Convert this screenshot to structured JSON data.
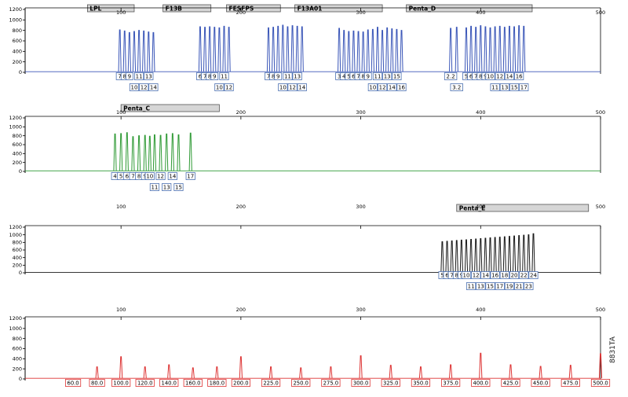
{
  "figure_code": "8831TA",
  "chart_data": {
    "type": "line",
    "description_kind": "electropherogram",
    "x_axis": {
      "range": [
        20,
        500
      ],
      "ticks": [
        100,
        200,
        300,
        400,
        500
      ]
    },
    "y_axis": {
      "range": [
        0,
        1200
      ],
      "ticks": [
        0,
        200,
        400,
        600,
        800,
        1000,
        1200
      ]
    },
    "panels": [
      {
        "id": "blue",
        "color": "#3a56b8",
        "loci": [
          {
            "name": "LPL",
            "start": 72,
            "end": 111
          },
          {
            "name": "F13B",
            "start": 135,
            "end": 175
          },
          {
            "name": "FESFPS",
            "start": 188,
            "end": 233
          },
          {
            "name": "F13A01",
            "start": 245,
            "end": 318
          },
          {
            "name": "Penta_D",
            "start": 338,
            "end": 443
          }
        ],
        "alleles": [
          {
            "label": "7",
            "x": 99,
            "h": 810,
            "row": 1
          },
          {
            "label": "8",
            "x": 103,
            "h": 790,
            "row": 1
          },
          {
            "label": "9",
            "x": 107,
            "h": 760,
            "row": 1
          },
          {
            "label": "10",
            "x": 111,
            "h": 780,
            "row": 2
          },
          {
            "label": "11",
            "x": 115,
            "h": 800,
            "row": 1
          },
          {
            "label": "12",
            "x": 119,
            "h": 790,
            "row": 2
          },
          {
            "label": "13",
            "x": 123,
            "h": 770,
            "row": 1
          },
          {
            "label": "14",
            "x": 127,
            "h": 760,
            "row": 2
          },
          {
            "label": "6",
            "x": 166,
            "h": 870,
            "row": 1
          },
          {
            "label": "7",
            "x": 170,
            "h": 860,
            "row": 1
          },
          {
            "label": "8",
            "x": 174,
            "h": 870,
            "row": 1
          },
          {
            "label": "9",
            "x": 178,
            "h": 860,
            "row": 1
          },
          {
            "label": "10",
            "x": 182,
            "h": 850,
            "row": 2
          },
          {
            "label": "11",
            "x": 186,
            "h": 880,
            "row": 1
          },
          {
            "label": "12",
            "x": 190,
            "h": 860,
            "row": 2
          },
          {
            "label": "7",
            "x": 223,
            "h": 850,
            "row": 1
          },
          {
            "label": "8",
            "x": 227,
            "h": 860,
            "row": 1
          },
          {
            "label": "9",
            "x": 231,
            "h": 880,
            "row": 1
          },
          {
            "label": "10",
            "x": 235,
            "h": 900,
            "row": 2
          },
          {
            "label": "11",
            "x": 239,
            "h": 870,
            "row": 1
          },
          {
            "label": "12",
            "x": 243,
            "h": 890,
            "row": 2
          },
          {
            "label": "13",
            "x": 247,
            "h": 880,
            "row": 1
          },
          {
            "label": "14",
            "x": 251,
            "h": 870,
            "row": 2
          },
          {
            "label": "3",
            "x": 282,
            "h": 840,
            "row": 1
          },
          {
            "label": "4",
            "x": 286,
            "h": 800,
            "row": 1
          },
          {
            "label": "5",
            "x": 290,
            "h": 780,
            "row": 1
          },
          {
            "label": "6",
            "x": 294,
            "h": 790,
            "row": 1
          },
          {
            "label": "7",
            "x": 298,
            "h": 780,
            "row": 1
          },
          {
            "label": "8",
            "x": 302,
            "h": 770,
            "row": 1
          },
          {
            "label": "9",
            "x": 306,
            "h": 810,
            "row": 1
          },
          {
            "label": "10",
            "x": 310,
            "h": 820,
            "row": 2
          },
          {
            "label": "11",
            "x": 314,
            "h": 860,
            "row": 1
          },
          {
            "label": "12",
            "x": 318,
            "h": 800,
            "row": 2
          },
          {
            "label": "13",
            "x": 322,
            "h": 850,
            "row": 1
          },
          {
            "label": "14",
            "x": 326,
            "h": 830,
            "row": 2
          },
          {
            "label": "15",
            "x": 330,
            "h": 820,
            "row": 1
          },
          {
            "label": "16",
            "x": 334,
            "h": 800,
            "row": 2
          },
          {
            "label": "2.2",
            "x": 375,
            "h": 840,
            "row": 1
          },
          {
            "label": "3.2",
            "x": 380,
            "h": 860,
            "row": 2
          },
          {
            "label": "5",
            "x": 388,
            "h": 850,
            "row": 1
          },
          {
            "label": "6",
            "x": 392,
            "h": 880,
            "row": 1
          },
          {
            "label": "7",
            "x": 396,
            "h": 860,
            "row": 1
          },
          {
            "label": "8",
            "x": 400,
            "h": 890,
            "row": 1
          },
          {
            "label": "9",
            "x": 404,
            "h": 870,
            "row": 1
          },
          {
            "label": "10",
            "x": 408,
            "h": 850,
            "row": 1
          },
          {
            "label": "11",
            "x": 412,
            "h": 870,
            "row": 2
          },
          {
            "label": "12",
            "x": 416,
            "h": 880,
            "row": 1
          },
          {
            "label": "13",
            "x": 420,
            "h": 860,
            "row": 2
          },
          {
            "label": "14",
            "x": 424,
            "h": 880,
            "row": 1
          },
          {
            "label": "15",
            "x": 428,
            "h": 870,
            "row": 2
          },
          {
            "label": "16",
            "x": 432,
            "h": 890,
            "row": 1
          },
          {
            "label": "17",
            "x": 436,
            "h": 880,
            "row": 2
          }
        ]
      },
      {
        "id": "green",
        "color": "#2f9a35",
        "loci": [
          {
            "name": "Penta_C",
            "start": 100,
            "end": 182
          }
        ],
        "alleles": [
          {
            "label": "4",
            "x": 95,
            "h": 840,
            "row": 1
          },
          {
            "label": "5",
            "x": 100,
            "h": 850,
            "row": 1
          },
          {
            "label": "6",
            "x": 105,
            "h": 870,
            "row": 1
          },
          {
            "label": "7",
            "x": 110,
            "h": 780,
            "row": 1
          },
          {
            "label": "8",
            "x": 115,
            "h": 800,
            "row": 1
          },
          {
            "label": "9",
            "x": 120,
            "h": 810,
            "row": 1
          },
          {
            "label": "10",
            "x": 124,
            "h": 790,
            "row": 1
          },
          {
            "label": "11",
            "x": 128,
            "h": 820,
            "row": 2
          },
          {
            "label": "12",
            "x": 133,
            "h": 810,
            "row": 1
          },
          {
            "label": "13",
            "x": 138,
            "h": 840,
            "row": 2
          },
          {
            "label": "14",
            "x": 143,
            "h": 850,
            "row": 1
          },
          {
            "label": "15",
            "x": 148,
            "h": 820,
            "row": 2
          },
          {
            "label": "17",
            "x": 158,
            "h": 860,
            "row": 1
          }
        ]
      },
      {
        "id": "black",
        "color": "#1a1a1a",
        "loci": [
          {
            "name": "Penta_E",
            "start": 380,
            "end": 490
          }
        ],
        "alleles": [
          {
            "label": "5",
            "x": 368,
            "h": 820,
            "row": 1
          },
          {
            "label": "6",
            "x": 372,
            "h": 830,
            "row": 1
          },
          {
            "label": "7",
            "x": 376,
            "h": 840,
            "row": 1
          },
          {
            "label": "8",
            "x": 380,
            "h": 850,
            "row": 1
          },
          {
            "label": "9",
            "x": 384,
            "h": 860,
            "row": 1
          },
          {
            "label": "10",
            "x": 388,
            "h": 870,
            "row": 1
          },
          {
            "label": "11",
            "x": 392,
            "h": 880,
            "row": 2
          },
          {
            "label": "12",
            "x": 396,
            "h": 890,
            "row": 1
          },
          {
            "label": "13",
            "x": 400,
            "h": 900,
            "row": 2
          },
          {
            "label": "14",
            "x": 404,
            "h": 910,
            "row": 1
          },
          {
            "label": "15",
            "x": 408,
            "h": 920,
            "row": 2
          },
          {
            "label": "16",
            "x": 412,
            "h": 930,
            "row": 1
          },
          {
            "label": "17",
            "x": 416,
            "h": 940,
            "row": 2
          },
          {
            "label": "18",
            "x": 420,
            "h": 950,
            "row": 1
          },
          {
            "label": "19",
            "x": 424,
            "h": 960,
            "row": 2
          },
          {
            "label": "20",
            "x": 428,
            "h": 970,
            "row": 1
          },
          {
            "label": "21",
            "x": 432,
            "h": 980,
            "row": 2
          },
          {
            "label": "22",
            "x": 436,
            "h": 990,
            "row": 1
          },
          {
            "label": "23",
            "x": 440,
            "h": 1000,
            "row": 2
          },
          {
            "label": "24",
            "x": 444,
            "h": 1030,
            "row": 1
          }
        ]
      },
      {
        "id": "red",
        "color": "#d33",
        "loci": [],
        "alleles": [
          {
            "label": "60.0",
            "x": 60,
            "h": 0,
            "row": 1
          },
          {
            "label": "80.0",
            "x": 80,
            "h": 240,
            "row": 1
          },
          {
            "label": "100.0",
            "x": 100,
            "h": 440,
            "row": 1
          },
          {
            "label": "120.0",
            "x": 120,
            "h": 240,
            "row": 1
          },
          {
            "label": "140.0",
            "x": 140,
            "h": 280,
            "row": 1
          },
          {
            "label": "160.0",
            "x": 160,
            "h": 220,
            "row": 1
          },
          {
            "label": "180.0",
            "x": 180,
            "h": 240,
            "row": 1
          },
          {
            "label": "200.0",
            "x": 200,
            "h": 440,
            "row": 1
          },
          {
            "label": "225.0",
            "x": 225,
            "h": 240,
            "row": 1
          },
          {
            "label": "250.0",
            "x": 250,
            "h": 220,
            "row": 1
          },
          {
            "label": "275.0",
            "x": 275,
            "h": 240,
            "row": 1
          },
          {
            "label": "300.0",
            "x": 300,
            "h": 460,
            "row": 1
          },
          {
            "label": "325.0",
            "x": 325,
            "h": 270,
            "row": 1
          },
          {
            "label": "350.0",
            "x": 350,
            "h": 240,
            "row": 1
          },
          {
            "label": "375.0",
            "x": 375,
            "h": 280,
            "row": 1
          },
          {
            "label": "400.0",
            "x": 400,
            "h": 510,
            "row": 1
          },
          {
            "label": "425.0",
            "x": 425,
            "h": 280,
            "row": 1
          },
          {
            "label": "450.0",
            "x": 450,
            "h": 250,
            "row": 1
          },
          {
            "label": "475.0",
            "x": 475,
            "h": 270,
            "row": 1
          },
          {
            "label": "500.0",
            "x": 500,
            "h": 500,
            "row": 1
          }
        ]
      }
    ]
  }
}
